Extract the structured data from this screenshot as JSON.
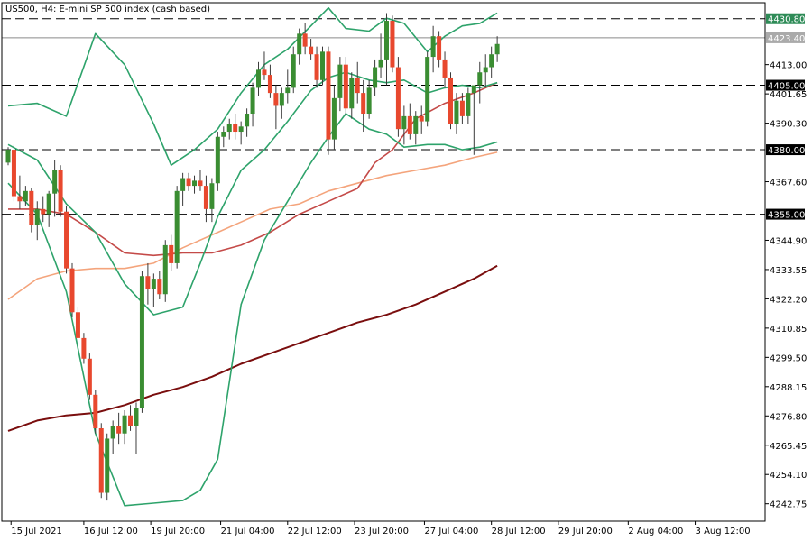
{
  "chart_data": {
    "type": "candlestick",
    "title": "US500, H4:  E-mini SP 500 index (cash based)",
    "ylim": [
      4236,
      4437
    ],
    "x_range": [
      0,
      130
    ],
    "y_ticks": [
      4413.0,
      4401.65,
      4390.3,
      4367.6,
      4344.9,
      4333.55,
      4322.2,
      4310.85,
      4299.5,
      4288.15,
      4276.8,
      4265.45,
      4254.1,
      4242.75
    ],
    "x_ticks": [
      {
        "label": "15 Jul 2021",
        "x": 0.5
      },
      {
        "label": "16 Jul 12:00",
        "x": 13
      },
      {
        "label": "19 Jul 20:00",
        "x": 24.5
      },
      {
        "label": "21 Jul 04:00",
        "x": 36.5
      },
      {
        "label": "22 Jul 12:00",
        "x": 48
      },
      {
        "label": "23 Jul 20:00",
        "x": 59.5
      },
      {
        "label": "27 Jul 04:00",
        "x": 71.5
      },
      {
        "label": "28 Jul 12:00",
        "x": 83
      },
      {
        "label": "29 Jul 20:00",
        "x": 94.5
      },
      {
        "label": "2 Aug 04:00",
        "x": 106.5
      },
      {
        "label": "3 Aug 12:00",
        "x": 118
      }
    ],
    "level_lines": [
      {
        "value": 4430.8,
        "label": "4430.80",
        "tag_color": "#2e8b57"
      },
      {
        "value": 4405.0,
        "label": "4405.00",
        "tag_color": "#000000"
      },
      {
        "value": 4380.0,
        "label": "4380.00",
        "tag_color": "#000000"
      },
      {
        "value": 4355.0,
        "label": "4355.00",
        "tag_color": "#000000"
      }
    ],
    "current_price": {
      "value": 4423.4,
      "label": "4423.40",
      "tag_color": "#aaaaaa"
    },
    "colors": {
      "bull": "#3a8d32",
      "bear": "#e8482e",
      "bollinger": "#2ea36b",
      "ma_fast": "#c44a48",
      "ma_mid": "#f4a47c",
      "ma_slow": "#7a0e0e"
    },
    "candles": [
      [
        0,
        4375,
        4381,
        4374,
        4380
      ],
      [
        1,
        4380,
        4382,
        4360,
        4362
      ],
      [
        2,
        4362,
        4370,
        4357,
        4360
      ],
      [
        3,
        4360,
        4366,
        4358,
        4364
      ],
      [
        4,
        4364,
        4365,
        4348,
        4351
      ],
      [
        5,
        4351,
        4360,
        4345,
        4357
      ],
      [
        6,
        4357,
        4362,
        4352,
        4355
      ],
      [
        7,
        4355,
        4364,
        4350,
        4363
      ],
      [
        8,
        4363,
        4376,
        4354,
        4372
      ],
      [
        9,
        4372,
        4374,
        4354,
        4356
      ],
      [
        10,
        4356,
        4358,
        4332,
        4334
      ],
      [
        11,
        4334,
        4336,
        4315,
        4317
      ],
      [
        12,
        4317,
        4319,
        4305,
        4307
      ],
      [
        13,
        4307,
        4309,
        4297,
        4299
      ],
      [
        14,
        4299,
        4301,
        4283,
        4285
      ],
      [
        15,
        4285,
        4287,
        4270,
        4272
      ],
      [
        16,
        4272,
        4274,
        4245,
        4247
      ],
      [
        17,
        4247,
        4270,
        4244,
        4268
      ],
      [
        18,
        4268,
        4275,
        4262,
        4273
      ],
      [
        19,
        4273,
        4278,
        4266,
        4270
      ],
      [
        20,
        4270,
        4279,
        4266,
        4277
      ],
      [
        21,
        4277,
        4281,
        4271,
        4273
      ],
      [
        22,
        4273,
        4282,
        4262,
        4280
      ],
      [
        23,
        4280,
        4333,
        4278,
        4331
      ],
      [
        24,
        4331,
        4336,
        4320,
        4326
      ],
      [
        25,
        4326,
        4332,
        4319,
        4330
      ],
      [
        26,
        4330,
        4333,
        4322,
        4324
      ],
      [
        27,
        4324,
        4345,
        4321,
        4343
      ],
      [
        28,
        4343,
        4347,
        4333,
        4336
      ],
      [
        29,
        4336,
        4366,
        4334,
        4364
      ],
      [
        30,
        4364,
        4371,
        4358,
        4369
      ],
      [
        31,
        4369,
        4371,
        4364,
        4366
      ],
      [
        32,
        4366,
        4370,
        4363,
        4368
      ],
      [
        33,
        4368,
        4372,
        4364,
        4366
      ],
      [
        34,
        4366,
        4370,
        4352,
        4357
      ],
      [
        35,
        4357,
        4369,
        4352,
        4367
      ],
      [
        36,
        4367,
        4387,
        4364,
        4385
      ],
      [
        37,
        4385,
        4389,
        4381,
        4387
      ],
      [
        38,
        4387,
        4392,
        4384,
        4390
      ],
      [
        39,
        4390,
        4394,
        4384,
        4387
      ],
      [
        40,
        4387,
        4391,
        4382,
        4389
      ],
      [
        41,
        4389,
        4396,
        4385,
        4394
      ],
      [
        42,
        4394,
        4406,
        4389,
        4404
      ],
      [
        43,
        4404,
        4414,
        4401,
        4411
      ],
      [
        44,
        4411,
        4418,
        4407,
        4409
      ],
      [
        45,
        4409,
        4413,
        4400,
        4402
      ],
      [
        46,
        4402,
        4405,
        4388,
        4397
      ],
      [
        47,
        4397,
        4404,
        4392,
        4402
      ],
      [
        48,
        4402,
        4411,
        4398,
        4404
      ],
      [
        49,
        4404,
        4420,
        4402,
        4417
      ],
      [
        50,
        4417,
        4427,
        4413,
        4425
      ],
      [
        51,
        4425,
        4429,
        4417,
        4420
      ],
      [
        52,
        4420,
        4423,
        4415,
        4417
      ],
      [
        53,
        4417,
        4420,
        4404,
        4407
      ],
      [
        54,
        4407,
        4420,
        4405,
        4418
      ],
      [
        55,
        4418,
        4420,
        4378,
        4384
      ],
      [
        56,
        4384,
        4405,
        4380,
        4400
      ],
      [
        57,
        4400,
        4416,
        4395,
        4413
      ],
      [
        58,
        4413,
        4416,
        4393,
        4396
      ],
      [
        59,
        4396,
        4410,
        4392,
        4408
      ],
      [
        60,
        4408,
        4414,
        4398,
        4402
      ],
      [
        61,
        4402,
        4407,
        4387,
        4394
      ],
      [
        62,
        4394,
        4407,
        4392,
        4404
      ],
      [
        63,
        4404,
        4415,
        4401,
        4412
      ],
      [
        64,
        4412,
        4425,
        4408,
        4415
      ],
      [
        65,
        4415,
        4433,
        4405,
        4430
      ],
      [
        66,
        4430,
        4432,
        4410,
        4412
      ],
      [
        67,
        4412,
        4416,
        4385,
        4388
      ],
      [
        68,
        4388,
        4397,
        4382,
        4393
      ],
      [
        69,
        4393,
        4398,
        4384,
        4386
      ],
      [
        70,
        4386,
        4395,
        4382,
        4393
      ],
      [
        71,
        4393,
        4397,
        4386,
        4391
      ],
      [
        72,
        4391,
        4418,
        4389,
        4416
      ],
      [
        73,
        4416,
        4428,
        4410,
        4424
      ],
      [
        74,
        4424,
        4426,
        4412,
        4415
      ],
      [
        75,
        4415,
        4418,
        4404,
        4408
      ],
      [
        76,
        4408,
        4410,
        4388,
        4390
      ],
      [
        77,
        4390,
        4402,
        4386,
        4399
      ],
      [
        78,
        4399,
        4402,
        4390,
        4393
      ],
      [
        79,
        4393,
        4404,
        4390,
        4402
      ],
      [
        80,
        4402,
        4404,
        4378,
        4405
      ],
      [
        81,
        4405,
        4414,
        4398,
        4410
      ],
      [
        82,
        4410,
        4417,
        4404,
        4412
      ],
      [
        83,
        4412,
        4420,
        4408,
        4417
      ],
      [
        84,
        4417,
        4424,
        4414,
        4421
      ]
    ],
    "bb_upper": [
      [
        0,
        4397
      ],
      [
        5,
        4398
      ],
      [
        10,
        4393
      ],
      [
        15,
        4425
      ],
      [
        20,
        4413
      ],
      [
        25,
        4390
      ],
      [
        28,
        4374
      ],
      [
        32,
        4380
      ],
      [
        36,
        4388
      ],
      [
        40,
        4402
      ],
      [
        44,
        4413
      ],
      [
        48,
        4419
      ],
      [
        52,
        4428
      ],
      [
        55,
        4435
      ],
      [
        58,
        4427
      ],
      [
        62,
        4426
      ],
      [
        65,
        4431
      ],
      [
        68,
        4429
      ],
      [
        72,
        4418
      ],
      [
        75,
        4424
      ],
      [
        78,
        4428
      ],
      [
        81,
        4429
      ],
      [
        84,
        4433
      ]
    ],
    "bb_lower": [
      [
        0,
        4367
      ],
      [
        5,
        4355
      ],
      [
        10,
        4325
      ],
      [
        15,
        4270
      ],
      [
        20,
        4242
      ],
      [
        25,
        4243
      ],
      [
        30,
        4244
      ],
      [
        33,
        4248
      ],
      [
        36,
        4260
      ],
      [
        40,
        4320
      ],
      [
        44,
        4345
      ],
      [
        48,
        4360
      ],
      [
        52,
        4375
      ],
      [
        55,
        4385
      ],
      [
        58,
        4394
      ],
      [
        62,
        4388
      ],
      [
        65,
        4386
      ],
      [
        68,
        4381
      ],
      [
        72,
        4382
      ],
      [
        75,
        4382
      ],
      [
        78,
        4380
      ],
      [
        81,
        4381
      ],
      [
        84,
        4383
      ]
    ],
    "bb_mid": [
      [
        0,
        4382
      ],
      [
        5,
        4376
      ],
      [
        10,
        4359
      ],
      [
        15,
        4348
      ],
      [
        20,
        4328
      ],
      [
        25,
        4316
      ],
      [
        30,
        4319
      ],
      [
        33,
        4336
      ],
      [
        36,
        4354
      ],
      [
        40,
        4372
      ],
      [
        44,
        4380
      ],
      [
        48,
        4391
      ],
      [
        52,
        4403
      ],
      [
        55,
        4408
      ],
      [
        58,
        4410
      ],
      [
        62,
        4407
      ],
      [
        65,
        4406
      ],
      [
        68,
        4407
      ],
      [
        72,
        4402
      ],
      [
        75,
        4404
      ],
      [
        78,
        4405
      ],
      [
        81,
        4404
      ],
      [
        84,
        4406
      ]
    ],
    "ma_fast_line": [
      [
        0,
        4357
      ],
      [
        5,
        4357
      ],
      [
        10,
        4355
      ],
      [
        15,
        4348
      ],
      [
        20,
        4340
      ],
      [
        25,
        4339
      ],
      [
        30,
        4340
      ],
      [
        35,
        4340
      ],
      [
        40,
        4343
      ],
      [
        45,
        4348
      ],
      [
        50,
        4355
      ],
      [
        55,
        4360
      ],
      [
        60,
        4365
      ],
      [
        63,
        4375
      ],
      [
        66,
        4380
      ],
      [
        70,
        4392
      ],
      [
        75,
        4398
      ],
      [
        80,
        4402
      ],
      [
        84,
        4406
      ]
    ],
    "ma_mid_line": [
      [
        0,
        4322
      ],
      [
        5,
        4330
      ],
      [
        10,
        4333
      ],
      [
        15,
        4334
      ],
      [
        20,
        4334
      ],
      [
        25,
        4336
      ],
      [
        30,
        4342
      ],
      [
        35,
        4347
      ],
      [
        40,
        4352
      ],
      [
        45,
        4357
      ],
      [
        50,
        4359
      ],
      [
        55,
        4364
      ],
      [
        60,
        4367
      ],
      [
        65,
        4370
      ],
      [
        70,
        4372
      ],
      [
        75,
        4374
      ],
      [
        80,
        4377
      ],
      [
        84,
        4379
      ]
    ],
    "ma_slow_line": [
      [
        0,
        4271
      ],
      [
        5,
        4275
      ],
      [
        10,
        4277
      ],
      [
        15,
        4278
      ],
      [
        20,
        4281
      ],
      [
        25,
        4285
      ],
      [
        30,
        4288
      ],
      [
        35,
        4292
      ],
      [
        40,
        4297
      ],
      [
        45,
        4301
      ],
      [
        50,
        4305
      ],
      [
        55,
        4309
      ],
      [
        60,
        4313
      ],
      [
        65,
        4316
      ],
      [
        70,
        4320
      ],
      [
        75,
        4325
      ],
      [
        80,
        4330
      ],
      [
        84,
        4335
      ]
    ]
  }
}
